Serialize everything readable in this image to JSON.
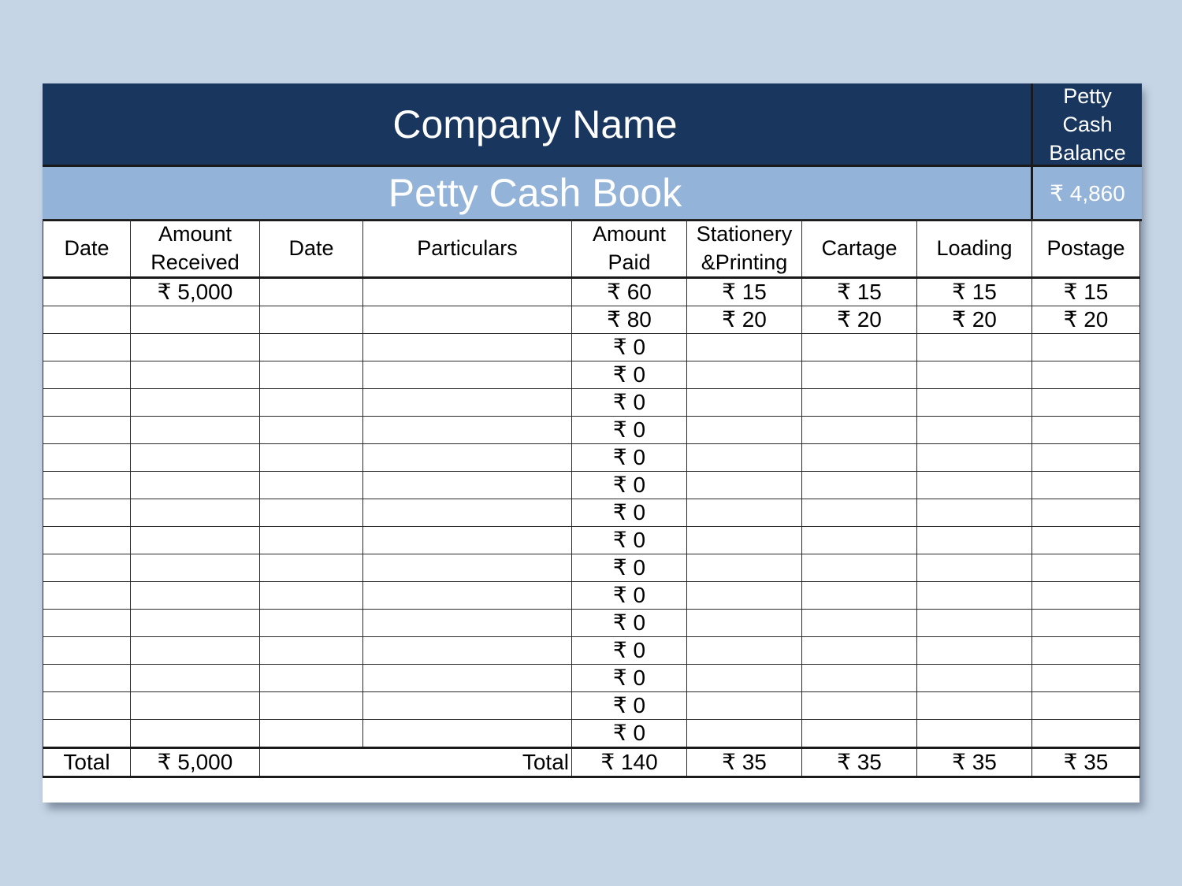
{
  "header": {
    "company": "Company Name",
    "book_title": "Petty Cash Book",
    "balance_label": "Petty Cash Balance",
    "balance_value": "₹ 4,860"
  },
  "columns": [
    "Date",
    "Amount Received",
    "Date",
    "Particulars",
    "Amount Paid",
    "Stationery &Printing",
    "Cartage",
    "Loading",
    "Postage"
  ],
  "rows": [
    [
      "",
      "₹ 5,000",
      "",
      "",
      "₹ 60",
      "₹ 15",
      "₹ 15",
      "₹ 15",
      "₹ 15"
    ],
    [
      "",
      "",
      "",
      "",
      "₹ 80",
      "₹ 20",
      "₹ 20",
      "₹ 20",
      "₹ 20"
    ],
    [
      "",
      "",
      "",
      "",
      "₹ 0",
      "",
      "",
      "",
      ""
    ],
    [
      "",
      "",
      "",
      "",
      "₹ 0",
      "",
      "",
      "",
      ""
    ],
    [
      "",
      "",
      "",
      "",
      "₹ 0",
      "",
      "",
      "",
      ""
    ],
    [
      "",
      "",
      "",
      "",
      "₹ 0",
      "",
      "",
      "",
      ""
    ],
    [
      "",
      "",
      "",
      "",
      "₹ 0",
      "",
      "",
      "",
      ""
    ],
    [
      "",
      "",
      "",
      "",
      "₹ 0",
      "",
      "",
      "",
      ""
    ],
    [
      "",
      "",
      "",
      "",
      "₹ 0",
      "",
      "",
      "",
      ""
    ],
    [
      "",
      "",
      "",
      "",
      "₹ 0",
      "",
      "",
      "",
      ""
    ],
    [
      "",
      "",
      "",
      "",
      "₹ 0",
      "",
      "",
      "",
      ""
    ],
    [
      "",
      "",
      "",
      "",
      "₹ 0",
      "",
      "",
      "",
      ""
    ],
    [
      "",
      "",
      "",
      "",
      "₹ 0",
      "",
      "",
      "",
      ""
    ],
    [
      "",
      "",
      "",
      "",
      "₹ 0",
      "",
      "",
      "",
      ""
    ],
    [
      "",
      "",
      "",
      "",
      "₹ 0",
      "",
      "",
      "",
      ""
    ],
    [
      "",
      "",
      "",
      "",
      "₹ 0",
      "",
      "",
      "",
      ""
    ],
    [
      "",
      "",
      "",
      "",
      "₹ 0",
      "",
      "",
      "",
      ""
    ]
  ],
  "totals": {
    "label_left": "Total",
    "received": "₹ 5,000",
    "label_right": "Total",
    "paid": "₹ 140",
    "stationery": "₹ 35",
    "cartage": "₹ 35",
    "loading": "₹ 35",
    "postage": "₹ 35"
  }
}
